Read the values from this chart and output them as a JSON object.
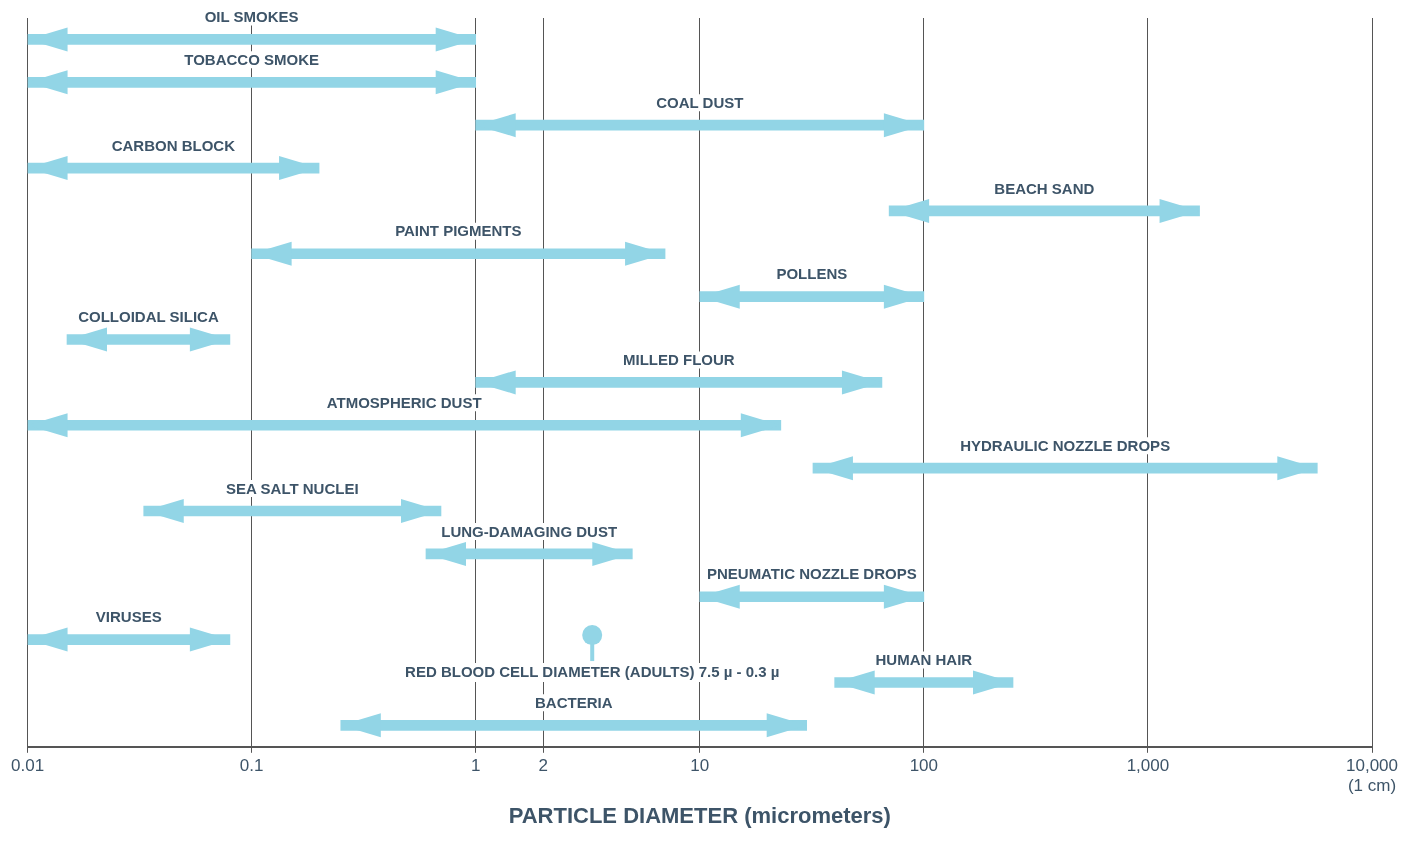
{
  "chart_data": {
    "type": "bar",
    "orientation": "horizontal",
    "xlabel": "PARTICLE DIAMETER (micrometers)",
    "categories": [
      "OIL SMOKES",
      "TOBACCO SMOKE",
      "COAL DUST",
      "CARBON BLOCK",
      "BEACH SAND",
      "PAINT PIGMENTS",
      "POLLENS",
      "COLLOIDAL SILICA",
      "MILLED FLOUR",
      "ATMOSPHERIC DUST",
      "HYDRAULIC NOZZLE DROPS",
      "SEA SALT NUCLEI",
      "LUNG-DAMAGING DUST",
      "PNEUMATIC NOZZLE DROPS",
      "VIRUSES",
      "HUMAN HAIR",
      "BACTERIA"
    ],
    "base": [
      0.01,
      0.01,
      1,
      0.01,
      70,
      0.1,
      10,
      0.015,
      1,
      0.01,
      32,
      0.033,
      0.6,
      10,
      0.01,
      40,
      0.25
    ],
    "values": [
      0.99,
      0.99,
      99,
      0.19,
      1630,
      6.9,
      90,
      0.065,
      64,
      22.99,
      5668,
      0.667,
      4.4,
      90,
      0.07,
      210,
      29.75
    ],
    "color": "#92d5e6",
    "log": "x",
    "xlim": [
      0.01,
      10000
    ],
    "xticks": [
      0.01,
      0.1,
      1,
      2,
      10,
      100,
      {
        "value": 1000,
        "label": "1,000"
      },
      {
        "value": 10000,
        "label": "10,000 (1 cm)"
      }
    ],
    "grid": "x",
    "legend": false,
    "annotations": [
      "RED BLOOD CELL DIAMETER (ADULTS) 7.5 µ - 0.3 µ"
    ]
  }
}
